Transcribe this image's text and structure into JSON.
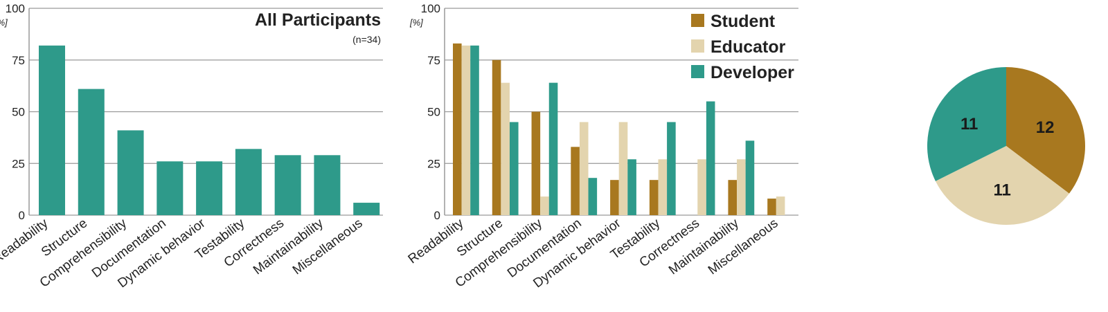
{
  "chart_data": [
    {
      "type": "bar",
      "title": "All Participants",
      "subtitle": "(n=34)",
      "ylabel": "[%]",
      "ylim": [
        0,
        100
      ],
      "yticks": [
        "0",
        "25",
        "50",
        "75",
        "100"
      ],
      "grid": true,
      "categories": [
        "Readability",
        "Structure",
        "Comprehensibility",
        "Documentation",
        "Dynamic behavior",
        "Testability",
        "Correctness",
        "Maintainability",
        "Miscellaneous"
      ],
      "series": [
        {
          "color": "#2e9a8a",
          "values": [
            82,
            61,
            41,
            26,
            26,
            32,
            29,
            29,
            6
          ]
        }
      ]
    },
    {
      "type": "bar",
      "ylabel": "[%]",
      "ylim": [
        0,
        100
      ],
      "yticks": [
        "0",
        "25",
        "50",
        "75",
        "100"
      ],
      "grid": true,
      "legend": "top-right",
      "categories": [
        "Readability",
        "Structure",
        "Comprehensibility",
        "Documentation",
        "Dynamic behavior",
        "Testability",
        "Correctness",
        "Maintainability",
        "Miscellaneous"
      ],
      "series": [
        {
          "name": "Student",
          "color": "#a8781f",
          "values": [
            83,
            75,
            50,
            33,
            17,
            17,
            0,
            17,
            8
          ]
        },
        {
          "name": "Educator",
          "color": "#e3d4ae",
          "values": [
            82,
            64,
            9,
            45,
            45,
            27,
            27,
            27,
            9
          ]
        },
        {
          "name": "Developer",
          "color": "#2e9a8a",
          "values": [
            82,
            45,
            64,
            18,
            27,
            45,
            55,
            36,
            0
          ]
        }
      ]
    },
    {
      "type": "pie",
      "slices": [
        {
          "label": "12",
          "value": 12,
          "color": "#a8781f"
        },
        {
          "label": "11",
          "value": 11,
          "color": "#e3d4ae"
        },
        {
          "label": "11",
          "value": 11,
          "color": "#2e9a8a"
        }
      ]
    }
  ]
}
